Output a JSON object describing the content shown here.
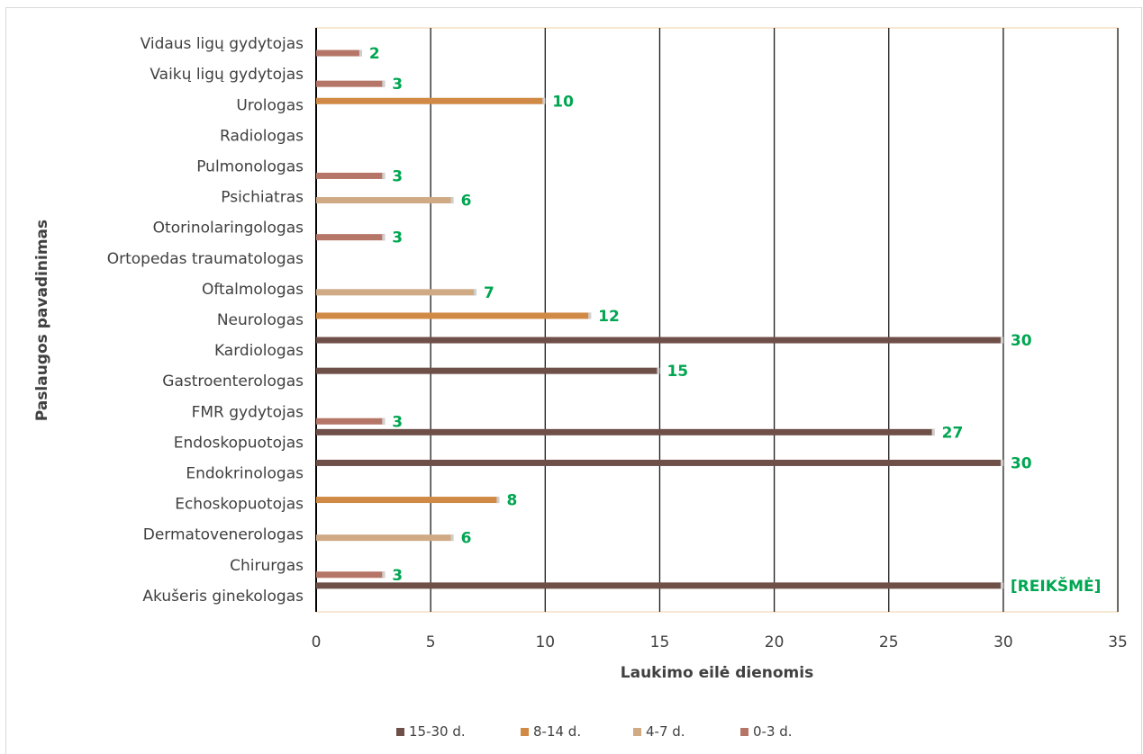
{
  "chart_data": {
    "type": "bar",
    "orientation": "horizontal",
    "categories": [
      "Vidaus ligų gydytojas",
      "Vaikų ligų gydytojas",
      "Urologas",
      "Radiologas",
      "Pulmonologas",
      "Psichiatras",
      "Otorinolaringologas",
      "Ortopedas traumatologas",
      "Oftalmologas",
      "Neurologas",
      "Kardiologas",
      "Gastroenterologas",
      "FMR gydytojas",
      "Endoskopuotojas",
      "Endokrinologas",
      "Echoskopuotojas",
      "Dermatovenerologas",
      "Chirurgas",
      "Akušeris ginekologas"
    ],
    "series": [
      {
        "name": "15-30 d.",
        "color": "#6f5049",
        "values": [
          null,
          null,
          null,
          null,
          null,
          null,
          null,
          null,
          null,
          null,
          30,
          15,
          null,
          27,
          30,
          null,
          null,
          null,
          30
        ]
      },
      {
        "name": "8-14 d.",
        "color": "#d08a45",
        "values": [
          null,
          null,
          10,
          null,
          null,
          null,
          null,
          null,
          null,
          12,
          null,
          null,
          null,
          null,
          null,
          8,
          null,
          null,
          null
        ]
      },
      {
        "name": "4-7 d.",
        "color": "#cfaa85",
        "values": [
          null,
          null,
          null,
          null,
          null,
          6,
          null,
          null,
          7,
          null,
          null,
          null,
          null,
          null,
          null,
          null,
          6,
          null,
          null
        ]
      },
      {
        "name": "0-3 d.",
        "color": "#b57668",
        "values": [
          2,
          3,
          null,
          null,
          3,
          null,
          3,
          null,
          null,
          null,
          null,
          null,
          3,
          null,
          null,
          null,
          null,
          3,
          null
        ]
      }
    ],
    "data_labels": [
      "2",
      "3",
      "10",
      "3",
      "6",
      "3",
      "7",
      "12",
      "30",
      "15",
      "3",
      "27",
      "30",
      "8",
      "6",
      "3",
      "[REIKŠMĖ]"
    ],
    "xlabel": "Laukimo eilė dienomis",
    "ylabel": "Paslaugos pavadinimas",
    "xlim": [
      0,
      35
    ],
    "xticks": [
      "0",
      "5",
      "10",
      "15",
      "20",
      "25",
      "30",
      "35"
    ],
    "grid": "vertical",
    "legend": {
      "position": "bottom",
      "entries": [
        "15-30 d.",
        "8-14 d.",
        "4-7 d.",
        "0-3 d."
      ]
    }
  }
}
